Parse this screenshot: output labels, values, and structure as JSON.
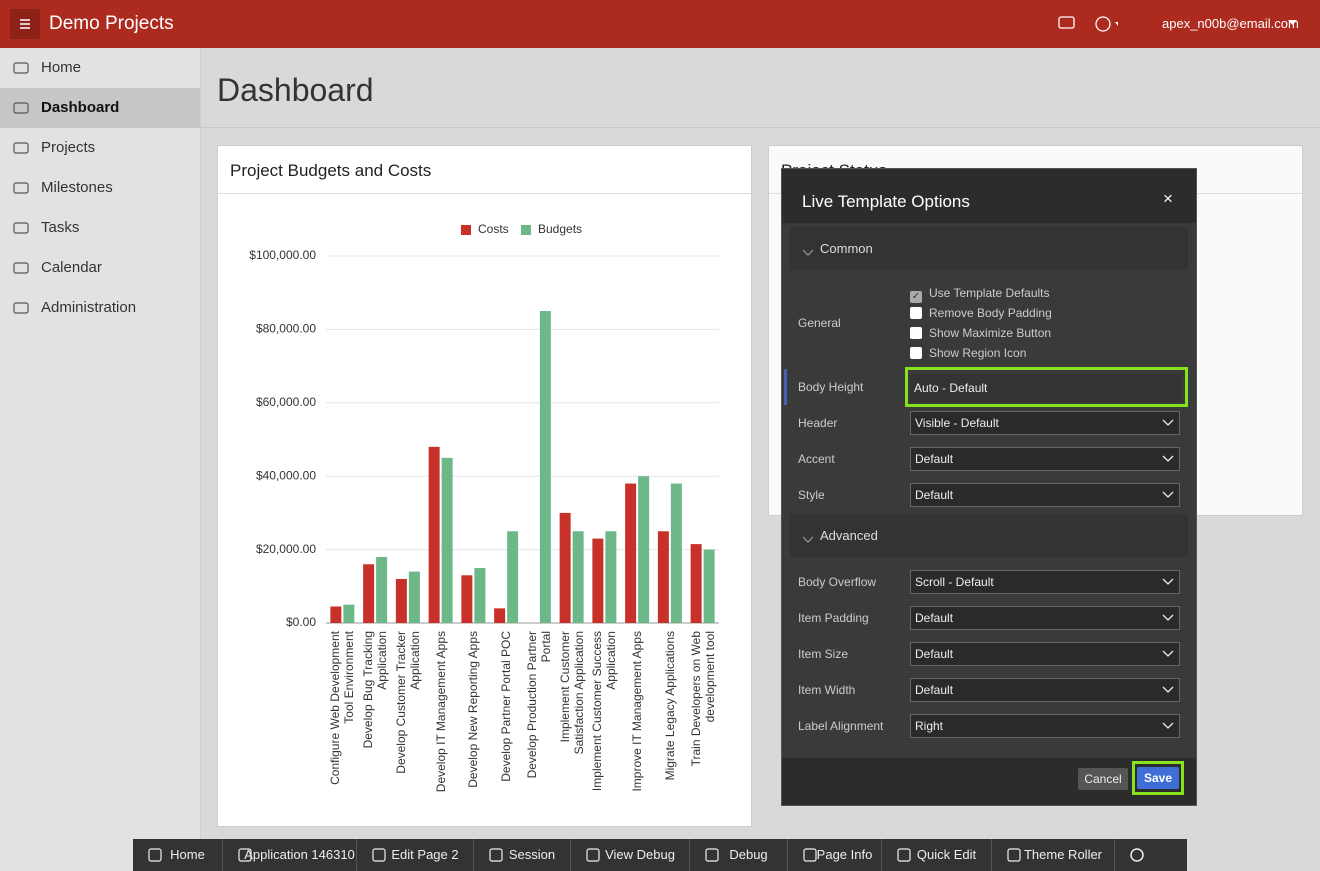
{
  "header": {
    "app_title": "Demo Projects",
    "user": "apex_n00b@email.com"
  },
  "nav": [
    "Home",
    "Dashboard",
    "Projects",
    "Milestones",
    "Tasks",
    "Calendar",
    "Administration"
  ],
  "active_nav": 1,
  "page_title": "Dashboard",
  "status_region": {
    "title": "Project Status"
  },
  "chart_region": {
    "title": "Project Budgets and Costs"
  },
  "chart_data": {
    "type": "bar",
    "categories": [
      "Configure Web Development Tool Environment",
      "Develop Bug Tracking Application",
      "Develop Customer Tracker Application",
      "Develop IT Management Apps",
      "Develop New Reporting Apps",
      "Develop Partner Portal POC",
      "Develop Production Partner Portal",
      "Implement Customer Satisfaction Application",
      "Implement Customer Success Application",
      "Improve IT Management Apps",
      "Migrate Legacy Applications",
      "Train Developers on Web development tool"
    ],
    "series": [
      {
        "name": "Costs",
        "color": "#c8302a",
        "values": [
          4500,
          16000,
          12000,
          48000,
          13000,
          4000,
          null,
          30000,
          23000,
          38000,
          25000,
          21500
        ]
      },
      {
        "name": "Budgets",
        "color": "#6db889",
        "values": [
          5000,
          18000,
          14000,
          45000,
          15000,
          25000,
          85000,
          25000,
          25000,
          40000,
          38000,
          20000
        ]
      }
    ],
    "ylim": [
      0,
      100000
    ],
    "yticks": [
      {
        "value": 0,
        "label": "$0.00"
      },
      {
        "value": 20000,
        "label": "$20,000.00"
      },
      {
        "value": 40000,
        "label": "$40,000.00"
      },
      {
        "value": 60000,
        "label": "$60,000.00"
      },
      {
        "value": 80000,
        "label": "$80,000.00"
      },
      {
        "value": 100000,
        "label": "$100,000.00"
      }
    ],
    "grid": true,
    "legend": "top"
  },
  "dialog": {
    "title": "Live Template Options",
    "common_section": "Common",
    "general_label": "General",
    "general_options": [
      {
        "label": "Use Template Defaults",
        "checked": true
      },
      {
        "label": "Remove Body Padding",
        "checked": false
      },
      {
        "label": "Show Maximize Button",
        "checked": false
      },
      {
        "label": "Show Region Icon",
        "checked": false
      }
    ],
    "common_fields": [
      {
        "label": "Body Height",
        "value": "Auto - Default"
      },
      {
        "label": "Header",
        "value": "Visible - Default"
      },
      {
        "label": "Accent",
        "value": "Default"
      },
      {
        "label": "Style",
        "value": "Default"
      }
    ],
    "advanced_section": "Advanced",
    "advanced_fields": [
      {
        "label": "Body Overflow",
        "value": "Scroll - Default"
      },
      {
        "label": "Item Padding",
        "value": "Default"
      },
      {
        "label": "Item Size",
        "value": "Default"
      },
      {
        "label": "Item Width",
        "value": "Default"
      },
      {
        "label": "Label Alignment",
        "value": "Right"
      }
    ],
    "cancel": "Cancel",
    "save": "Save"
  },
  "toolbar": [
    "Home",
    "Application 146310",
    "Edit Page 2",
    "Session",
    "View Debug",
    "Debug",
    "Page Info",
    "Quick Edit",
    "Theme Roller"
  ]
}
